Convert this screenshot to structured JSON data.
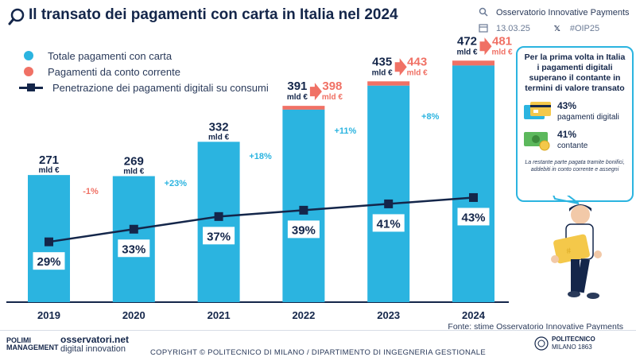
{
  "header": {
    "title": "Il transato dei pagamenti con carta in Italia nel 2024",
    "source_name": "Osservatorio Innovative Payments",
    "date": "13.03.25",
    "hashtag": "#OIP25"
  },
  "chart_data": {
    "type": "bar",
    "categories": [
      "2019",
      "2020",
      "2021",
      "2022",
      "2023",
      "2024"
    ],
    "series": [
      {
        "name": "Totale pagamenti con carta",
        "values": [
          271,
          269,
          332,
          391,
          435,
          472
        ],
        "color": "#2bb4e0"
      },
      {
        "name": "Pagamenti da conto corrente",
        "values": [
          null,
          null,
          null,
          398,
          443,
          481
        ],
        "color": "#f07165"
      },
      {
        "name": "Penetrazione dei pagamenti digitali su consumi",
        "values": [
          29,
          33,
          37,
          39,
          41,
          43
        ],
        "unit": "%",
        "type": "line",
        "color": "#14264a"
      }
    ],
    "unit_label": "mld €",
    "value_labels": [
      "271",
      "269",
      "332",
      "391",
      "435",
      "472"
    ],
    "conto_labels": [
      "398",
      "443",
      "481"
    ],
    "line_labels": [
      "29%",
      "33%",
      "37%",
      "39%",
      "41%",
      "43%"
    ],
    "growth_labels": [
      "-1%",
      "+23%",
      "+18%",
      "+11%",
      "+8%"
    ],
    "growth_colors": [
      "#f07165",
      "#2bb4e0",
      "#2bb4e0",
      "#2bb4e0",
      "#2bb4e0"
    ],
    "grid": false,
    "legend_position": "top-left"
  },
  "callout": {
    "title": "Per la prima volta in Italia i pagamenti digitali superano il contante in termini di valore transato",
    "digital_pct": "43%",
    "digital_label": "pagamenti digitali",
    "cash_pct": "41%",
    "cash_label": "contante",
    "note": "La restante parte pagata tramite bonifici, addebiti in conto corrente e assegni"
  },
  "source": "Fonte: stime Osservatorio Innovative Payments",
  "footer": {
    "copyright": "COPYRIGHT © POLITECNICO DI MILANO / DIPARTIMENTO DI INGEGNERIA GESTIONALE",
    "polimi_line1": "POLIMI",
    "polimi_line2": "MANAGEMENT",
    "osserv_line1": "osservatori.net",
    "osserv_line2": "digital innovation",
    "politecnico_line1": "POLITECNICO",
    "politecnico_line2": "MILANO 1863"
  }
}
